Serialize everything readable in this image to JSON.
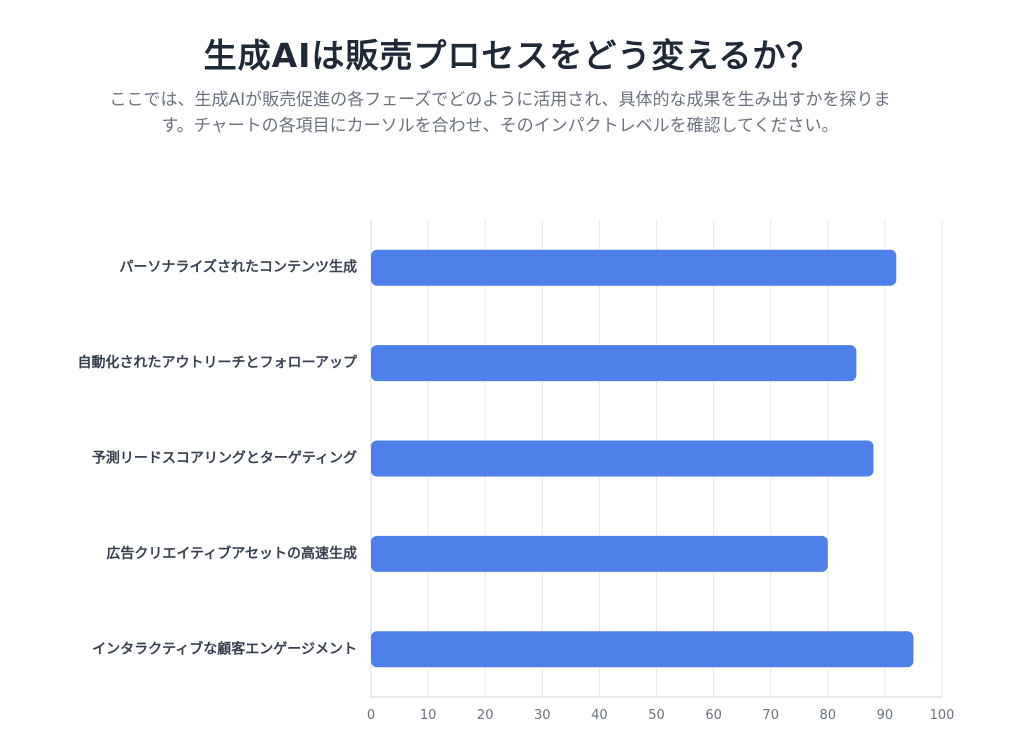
{
  "header": {
    "title": "生成AIは販売プロセスをどう変えるか？",
    "subtitle": "ここでは、生成AIが販売促進の各フェーズでどのように活用され、具体的な成果を生み出すかを探ります。チャートの各項目にカーソルを合わせ、そのインパクトレベルを確認してください。"
  },
  "chart_data": {
    "type": "bar",
    "orientation": "horizontal",
    "title": "",
    "xlabel": "",
    "ylabel": "",
    "categories": [
      "パーソナライズされたコンテンツ生成",
      "自動化されたアウトリーチとフォローアップ",
      "予測リードスコアリングとターゲティング",
      "広告クリエイティブアセットの高速生成",
      "インタラクティブな顧客エンゲージメント"
    ],
    "values": [
      92,
      85,
      88,
      80,
      95
    ],
    "xlim": [
      0,
      100
    ],
    "xticks": [
      0,
      10,
      20,
      30,
      40,
      50,
      60,
      70,
      80,
      90,
      100
    ],
    "grid": true,
    "bar_color": "#4f7fe8",
    "grid_color": "#e5e7eb"
  }
}
